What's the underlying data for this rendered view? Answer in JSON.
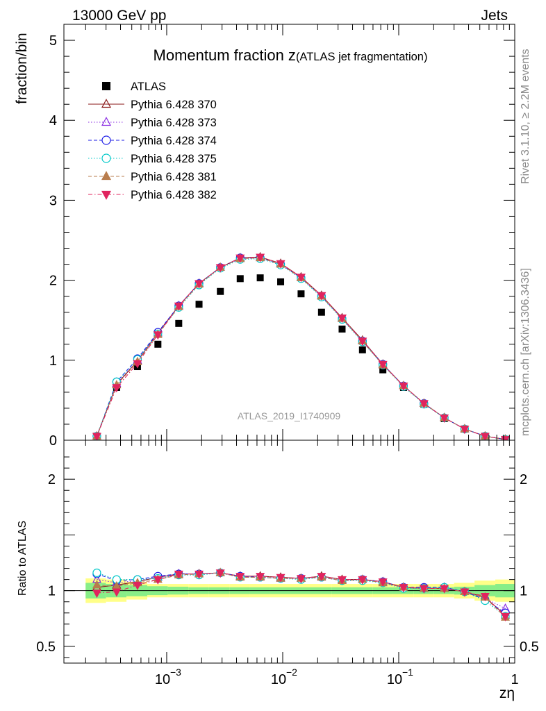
{
  "header": {
    "beam_label": "13000 GeV pp",
    "process_label": "Jets"
  },
  "side_labels": {
    "rivet_label": "Rivet 3.1.10, ≥ 2.2M events",
    "source_label": "mcplots.cern.ch [arXiv:1306.3436]"
  },
  "chart_data": [
    {
      "type": "scatter",
      "title": "Momentum fraction z",
      "title_suffix": "(ATLAS jet fragmentation)",
      "ylabel": "fraction/bin",
      "xlabel": "zη",
      "xscale": "log",
      "xlim": [
        0.00013,
        1.0
      ],
      "ylim": [
        0,
        5.2
      ],
      "yticks": [
        0,
        1,
        2,
        3,
        4,
        5
      ],
      "analysis_label": "ATLAS_2019_I1740909",
      "legend_placement": "top-left",
      "x": [
        0.00025,
        0.00037,
        0.00056,
        0.00084,
        0.00127,
        0.0019,
        0.0029,
        0.0043,
        0.0064,
        0.0096,
        0.0144,
        0.0216,
        0.0325,
        0.0487,
        0.073,
        0.11,
        0.165,
        0.247,
        0.37,
        0.555,
        0.83
      ],
      "series": [
        {
          "name": "ATLAS",
          "color": "#000000",
          "marker": "filled-square",
          "line": "none",
          "values": [
            0.05,
            0.66,
            0.92,
            1.2,
            1.46,
            1.7,
            1.86,
            2.02,
            2.03,
            1.98,
            1.83,
            1.6,
            1.39,
            1.13,
            0.88,
            0.66,
            0.45,
            0.27,
            0.14,
            0.05,
            0.01
          ]
        },
        {
          "name": "Pythia 6.428 370",
          "color": "#8b1a1a",
          "marker": "open-triangle-up",
          "line": "solid",
          "values": [
            0.05,
            0.7,
            0.99,
            1.34,
            1.68,
            1.96,
            2.16,
            2.28,
            2.29,
            2.21,
            2.04,
            1.81,
            1.53,
            1.25,
            0.95,
            0.68,
            0.46,
            0.28,
            0.14,
            0.05,
            0.01
          ]
        },
        {
          "name": "Pythia 6.428 373",
          "color": "#8a2be2",
          "marker": "open-triangle-up",
          "line": "dotted",
          "values": [
            0.05,
            0.71,
            1.0,
            1.34,
            1.68,
            1.96,
            2.16,
            2.27,
            2.28,
            2.2,
            2.03,
            1.8,
            1.52,
            1.24,
            0.94,
            0.68,
            0.46,
            0.28,
            0.14,
            0.05,
            0.01
          ]
        },
        {
          "name": "Pythia 6.428 374",
          "color": "#1e1ee6",
          "marker": "open-circle",
          "line": "dashed",
          "values": [
            0.05,
            0.73,
            1.02,
            1.35,
            1.68,
            1.96,
            2.16,
            2.28,
            2.28,
            2.2,
            2.03,
            1.8,
            1.52,
            1.24,
            0.95,
            0.68,
            0.46,
            0.28,
            0.14,
            0.05,
            0.01
          ]
        },
        {
          "name": "Pythia 6.428 375",
          "color": "#00c8c8",
          "marker": "open-circle",
          "line": "dotted",
          "values": [
            0.05,
            0.73,
            1.01,
            1.33,
            1.66,
            1.94,
            2.15,
            2.26,
            2.27,
            2.19,
            2.02,
            1.79,
            1.51,
            1.23,
            0.94,
            0.67,
            0.45,
            0.28,
            0.14,
            0.05,
            0.01
          ]
        },
        {
          "name": "Pythia 6.428 381",
          "color": "#b87c4c",
          "marker": "filled-triangle-up",
          "line": "dashed",
          "values": [
            0.05,
            0.69,
            0.98,
            1.32,
            1.67,
            1.95,
            2.16,
            2.27,
            2.28,
            2.2,
            2.03,
            1.8,
            1.52,
            1.24,
            0.94,
            0.68,
            0.46,
            0.28,
            0.14,
            0.05,
            0.01
          ]
        },
        {
          "name": "Pythia 6.428 382",
          "color": "#e0245e",
          "marker": "filled-triangle-down",
          "line": "dashdot",
          "values": [
            0.05,
            0.66,
            0.96,
            1.32,
            1.68,
            1.96,
            2.16,
            2.28,
            2.29,
            2.21,
            2.04,
            1.81,
            1.53,
            1.24,
            0.95,
            0.68,
            0.46,
            0.28,
            0.14,
            0.05,
            0.01
          ]
        }
      ]
    },
    {
      "type": "scatter",
      "ylabel": "Ratio to ATLAS",
      "xlabel": "zη",
      "xscale": "log",
      "xlim": [
        0.00013,
        1.0
      ],
      "ylim": [
        0.35,
        2.35
      ],
      "yticks": [
        0.5,
        1,
        2
      ],
      "reference_line": 1.0,
      "x": [
        0.00025,
        0.00037,
        0.00056,
        0.00084,
        0.00127,
        0.0019,
        0.0029,
        0.0043,
        0.0064,
        0.0096,
        0.0144,
        0.0216,
        0.0325,
        0.0487,
        0.073,
        0.11,
        0.165,
        0.247,
        0.37,
        0.555,
        0.83
      ],
      "uncertainty_bands": {
        "x_edges": [
          0.0002,
          0.0003,
          0.00045,
          0.00068,
          0.00102,
          0.00154,
          0.0023,
          0.0035,
          0.0052,
          0.0078,
          0.0118,
          0.0176,
          0.0265,
          0.0397,
          0.0595,
          0.089,
          0.134,
          0.2,
          0.3,
          0.45,
          0.68,
          1.0
        ],
        "stat_color": "#88ee88",
        "total_color": "#ffff88",
        "stat": [
          0.07,
          0.06,
          0.05,
          0.04,
          0.035,
          0.03,
          0.03,
          0.03,
          0.03,
          0.03,
          0.03,
          0.03,
          0.03,
          0.03,
          0.03,
          0.03,
          0.03,
          0.03,
          0.035,
          0.05,
          0.06
        ],
        "total": [
          0.11,
          0.1,
          0.08,
          0.06,
          0.06,
          0.06,
          0.06,
          0.06,
          0.06,
          0.06,
          0.06,
          0.06,
          0.06,
          0.06,
          0.06,
          0.06,
          0.06,
          0.06,
          0.07,
          0.09,
          0.1
        ]
      },
      "series": [
        {
          "name": "Pythia 6.428 370",
          "color": "#8b1a1a",
          "marker": "open-triangle-up",
          "line": "solid",
          "values": [
            1.03,
            1.05,
            1.08,
            1.12,
            1.15,
            1.15,
            1.16,
            1.13,
            1.13,
            1.12,
            1.11,
            1.13,
            1.1,
            1.1,
            1.08,
            1.03,
            1.02,
            1.02,
            0.99,
            0.94,
            0.78
          ]
        },
        {
          "name": "Pythia 6.428 373",
          "color": "#8a2be2",
          "marker": "open-triangle-up",
          "line": "dotted",
          "values": [
            1.1,
            1.07,
            1.09,
            1.12,
            1.15,
            1.15,
            1.16,
            1.12,
            1.12,
            1.11,
            1.11,
            1.12,
            1.09,
            1.1,
            1.07,
            1.03,
            1.02,
            1.03,
            0.99,
            0.93,
            0.84
          ]
        },
        {
          "name": "Pythia 6.428 374",
          "color": "#1e1ee6",
          "marker": "open-circle",
          "line": "dashed",
          "values": [
            1.15,
            1.09,
            1.1,
            1.13,
            1.15,
            1.15,
            1.16,
            1.13,
            1.12,
            1.11,
            1.11,
            1.12,
            1.09,
            1.1,
            1.08,
            1.03,
            1.03,
            1.03,
            0.99,
            0.92,
            0.8
          ]
        },
        {
          "name": "Pythia 6.428 375",
          "color": "#00c8c8",
          "marker": "open-circle",
          "line": "dotted",
          "values": [
            1.16,
            1.1,
            1.1,
            1.11,
            1.14,
            1.14,
            1.16,
            1.12,
            1.12,
            1.11,
            1.1,
            1.12,
            1.09,
            1.09,
            1.07,
            1.02,
            1.02,
            1.03,
            0.99,
            0.91,
            0.77
          ]
        },
        {
          "name": "Pythia 6.428 381",
          "color": "#b87c4c",
          "marker": "filled-triangle-up",
          "line": "dashed",
          "values": [
            1.05,
            1.04,
            1.07,
            1.1,
            1.14,
            1.15,
            1.16,
            1.12,
            1.12,
            1.11,
            1.11,
            1.12,
            1.09,
            1.1,
            1.07,
            1.03,
            1.02,
            1.02,
            0.99,
            0.94,
            0.76
          ]
        },
        {
          "name": "Pythia 6.428 382",
          "color": "#e0245e",
          "marker": "filled-triangle-down",
          "line": "dashdot",
          "values": [
            0.98,
            0.99,
            1.05,
            1.1,
            1.15,
            1.15,
            1.16,
            1.13,
            1.13,
            1.12,
            1.11,
            1.13,
            1.1,
            1.1,
            1.08,
            1.03,
            1.02,
            1.02,
            0.99,
            0.95,
            0.77
          ]
        }
      ]
    }
  ]
}
